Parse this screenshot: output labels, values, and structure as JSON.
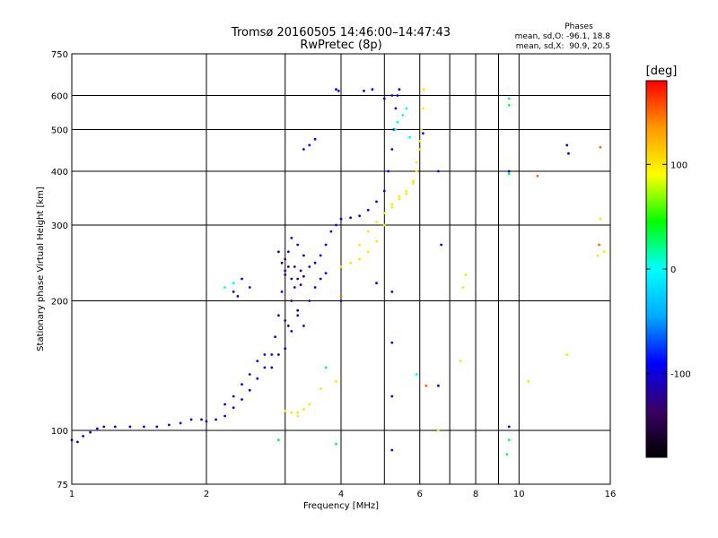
{
  "chart_data": {
    "type": "scatter",
    "title": "Tromsø 20160505 14:46:00–14:47:43",
    "subtitle": "RwPretec (8p)",
    "xlabel": "Frequency [MHz]",
    "ylabel": "Stationary phase Virtual Height [km]",
    "x_scale": "log",
    "y_scale": "log",
    "xlim": [
      1,
      16
    ],
    "ylim": [
      75,
      750
    ],
    "x_ticks": [
      1,
      2,
      4,
      6,
      8,
      10,
      16
    ],
    "x_minor": [
      3,
      5,
      7,
      9
    ],
    "y_ticks": [
      75,
      100,
      200,
      300,
      400,
      500,
      600,
      750
    ],
    "grid": true,
    "phase_box": {
      "title": "Phases",
      "line1": "mean, sd,O: -96.1, 18.8",
      "line2": "mean, sd,X:  90.9, 20.5"
    },
    "colorbar": {
      "label": "[deg]",
      "range": [
        -180,
        180
      ],
      "ticks": [
        100,
        0,
        -100
      ],
      "colors": [
        "#000000",
        "#3a0066",
        "#0000ff",
        "#00aaff",
        "#00ffff",
        "#00ff00",
        "#ffff00",
        "#ff9900",
        "#ff0000"
      ]
    },
    "series": [
      {
        "phase": -100,
        "points": [
          [
            1.0,
            95
          ],
          [
            1.03,
            94
          ],
          [
            1.06,
            97
          ],
          [
            1.1,
            99
          ],
          [
            1.14,
            101
          ],
          [
            1.18,
            102
          ],
          [
            1.25,
            102
          ],
          [
            1.35,
            102
          ],
          [
            1.45,
            102
          ],
          [
            1.55,
            102
          ],
          [
            1.65,
            103
          ],
          [
            1.75,
            104
          ],
          [
            1.85,
            106
          ],
          [
            1.95,
            106
          ],
          [
            2.0,
            105
          ],
          [
            2.1,
            106
          ],
          [
            2.2,
            108
          ],
          [
            2.3,
            113
          ],
          [
            2.4,
            118
          ],
          [
            2.5,
            124
          ],
          [
            2.6,
            132
          ],
          [
            2.7,
            140
          ],
          [
            2.8,
            150
          ],
          [
            2.85,
            165
          ],
          [
            2.9,
            185
          ],
          [
            2.95,
            210
          ],
          [
            3.0,
            235
          ],
          [
            3.05,
            260
          ],
          [
            3.1,
            280
          ],
          [
            3.2,
            270
          ],
          [
            3.3,
            255
          ],
          [
            3.4,
            240
          ],
          [
            3.5,
            245
          ],
          [
            3.6,
            255
          ],
          [
            3.7,
            270
          ],
          [
            3.8,
            290
          ],
          [
            3.9,
            300
          ],
          [
            4.0,
            310
          ],
          [
            4.2,
            312
          ],
          [
            4.4,
            315
          ],
          [
            4.6,
            325
          ],
          [
            4.8,
            340
          ],
          [
            5.0,
            360
          ],
          [
            5.1,
            400
          ],
          [
            5.2,
            450
          ],
          [
            5.25,
            500
          ],
          [
            5.3,
            560
          ],
          [
            5.35,
            600
          ],
          [
            5.4,
            620
          ],
          [
            2.2,
            115
          ],
          [
            2.3,
            120
          ],
          [
            2.4,
            128
          ],
          [
            2.5,
            135
          ],
          [
            2.6,
            145
          ],
          [
            2.7,
            150
          ],
          [
            2.8,
            140
          ],
          [
            2.9,
            150
          ],
          [
            3.0,
            155
          ],
          [
            3.1,
            170
          ],
          [
            3.2,
            185
          ],
          [
            3.3,
            175
          ],
          [
            3.4,
            200
          ],
          [
            3.5,
            215
          ],
          [
            3.6,
            225
          ],
          [
            3.7,
            232
          ],
          [
            2.3,
            210
          ],
          [
            2.4,
            225
          ],
          [
            2.5,
            215
          ],
          [
            2.35,
            205
          ],
          [
            3.3,
            450
          ],
          [
            3.4,
            460
          ],
          [
            3.5,
            475
          ],
          [
            4.5,
            615
          ],
          [
            4.7,
            620
          ],
          [
            3.9,
            620
          ],
          [
            3.95,
            615
          ],
          [
            5.0,
            590
          ],
          [
            5.2,
            600
          ],
          [
            6.6,
            400
          ],
          [
            6.7,
            270
          ],
          [
            9.5,
            400
          ],
          [
            9.5,
            102
          ],
          [
            12.8,
            460
          ],
          [
            12.9,
            440
          ],
          [
            4.8,
            220
          ],
          [
            5.2,
            210
          ],
          [
            5.2,
            160
          ],
          [
            5.2,
            120
          ],
          [
            5.2,
            90
          ],
          [
            4.0,
            200
          ],
          [
            6.1,
            490
          ],
          [
            6.6,
            127
          ]
        ]
      },
      {
        "phase": -130,
        "points": [
          [
            2.9,
            260
          ],
          [
            3.0,
            250
          ],
          [
            3.05,
            240
          ],
          [
            3.1,
            225
          ],
          [
            3.15,
            215
          ],
          [
            3.2,
            225
          ],
          [
            3.25,
            218
          ],
          [
            3.1,
            200
          ],
          [
            3.2,
            190
          ],
          [
            3.0,
            180
          ],
          [
            3.05,
            175
          ],
          [
            2.95,
            245
          ],
          [
            3.0,
            230
          ],
          [
            3.15,
            240
          ],
          [
            3.25,
            235
          ],
          [
            3.3,
            228
          ]
        ]
      },
      {
        "phase": 100,
        "points": [
          [
            3.0,
            111
          ],
          [
            3.1,
            110
          ],
          [
            3.2,
            110
          ],
          [
            3.3,
            112
          ],
          [
            3.4,
            115
          ],
          [
            3.2,
            108
          ],
          [
            4.0,
            240
          ],
          [
            4.2,
            245
          ],
          [
            4.4,
            250
          ],
          [
            4.6,
            260
          ],
          [
            4.8,
            275
          ],
          [
            5.0,
            300
          ],
          [
            5.2,
            330
          ],
          [
            5.4,
            350
          ],
          [
            5.6,
            360
          ],
          [
            5.8,
            375
          ],
          [
            5.9,
            400
          ],
          [
            6.0,
            450
          ],
          [
            6.05,
            500
          ],
          [
            6.1,
            560
          ],
          [
            6.12,
            620
          ],
          [
            4.4,
            270
          ],
          [
            4.6,
            290
          ],
          [
            4.8,
            305
          ],
          [
            5.0,
            320
          ],
          [
            5.2,
            335
          ],
          [
            5.4,
            345
          ],
          [
            5.6,
            355
          ],
          [
            5.8,
            380
          ],
          [
            5.9,
            420
          ],
          [
            6.0,
            470
          ],
          [
            3.9,
            130
          ],
          [
            3.6,
            125
          ],
          [
            15.2,
            310
          ],
          [
            15.0,
            255
          ],
          [
            15.5,
            260
          ]
        ]
      },
      {
        "phase": 0,
        "points": [
          [
            2.3,
            220
          ],
          [
            2.2,
            215
          ],
          [
            5.9,
            135
          ],
          [
            5.3,
            500
          ],
          [
            5.35,
            520
          ],
          [
            5.5,
            540
          ],
          [
            5.6,
            560
          ],
          [
            5.7,
            480
          ]
        ]
      },
      {
        "phase": 30,
        "points": [
          [
            2.9,
            95
          ],
          [
            3.7,
            140
          ],
          [
            9.5,
            590
          ],
          [
            9.5,
            570
          ],
          [
            9.5,
            95
          ],
          [
            9.4,
            88
          ],
          [
            3.9,
            93
          ],
          [
            9.5,
            395
          ]
        ]
      },
      {
        "phase": 150,
        "points": [
          [
            15.2,
            455
          ],
          [
            15.1,
            270
          ],
          [
            11.0,
            390
          ],
          [
            4.0,
            205
          ],
          [
            6.2,
            127
          ]
        ]
      },
      {
        "phase": 80,
        "points": [
          [
            7.5,
            215
          ],
          [
            7.6,
            230
          ],
          [
            10.5,
            130
          ],
          [
            12.8,
            150
          ],
          [
            6.6,
            100
          ],
          [
            7.4,
            145
          ]
        ]
      }
    ]
  }
}
